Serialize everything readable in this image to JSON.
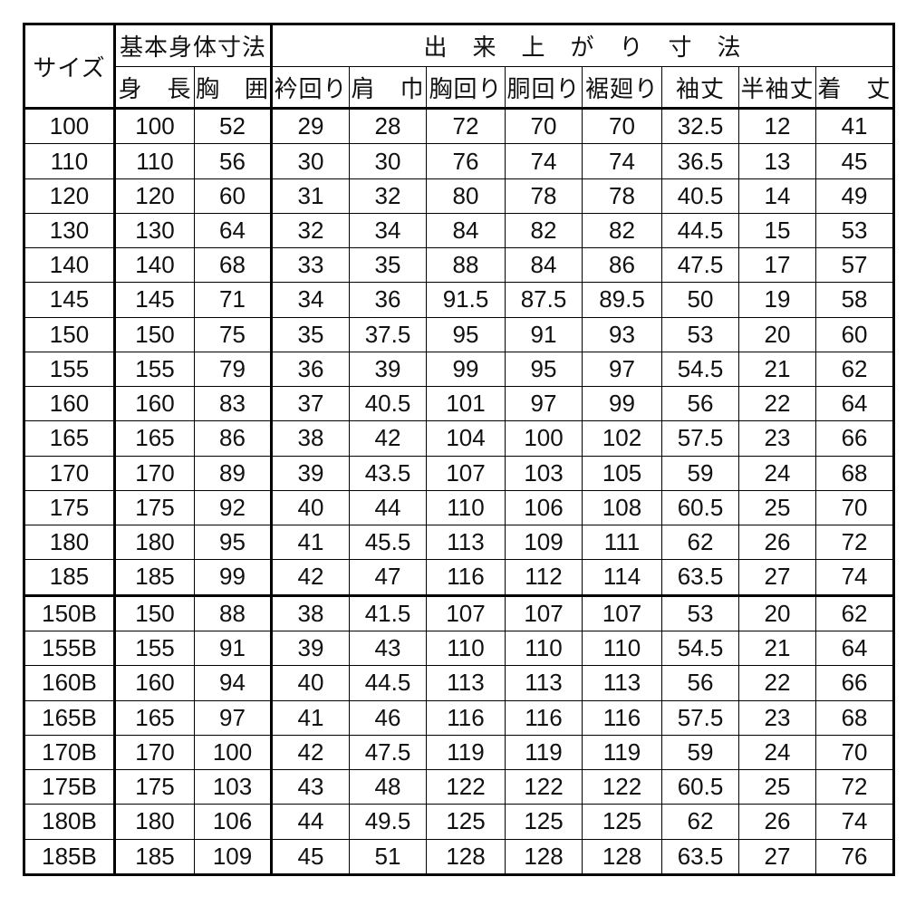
{
  "page": {
    "background_color": "#ffffff",
    "border_color": "#000000",
    "text_color": "#111111"
  },
  "table": {
    "header": {
      "size_label": "サイズ",
      "basic_group_label": "基本身体寸法",
      "finished_group_label": "出　来　上　が　り　寸　法",
      "columns": [
        {
          "name": "height",
          "label": "身　長"
        },
        {
          "name": "chest-girth",
          "label": "胸　囲"
        },
        {
          "name": "collar",
          "label": "衿回り"
        },
        {
          "name": "shoulder-width",
          "label": "肩　巾"
        },
        {
          "name": "chest",
          "label": "胸回り"
        },
        {
          "name": "waist",
          "label": "胴回り"
        },
        {
          "name": "hem",
          "label": "裾廻り"
        },
        {
          "name": "sleeve-length",
          "label": "袖丈"
        },
        {
          "name": "half-sleeve-length",
          "label": "半袖丈"
        },
        {
          "name": "body-length",
          "label": "着　丈"
        }
      ]
    },
    "regular_rows": [
      [
        "100",
        "100",
        "52",
        "29",
        "28",
        "72",
        "70",
        "70",
        "32.5",
        "12",
        "41"
      ],
      [
        "110",
        "110",
        "56",
        "30",
        "30",
        "76",
        "74",
        "74",
        "36.5",
        "13",
        "45"
      ],
      [
        "120",
        "120",
        "60",
        "31",
        "32",
        "80",
        "78",
        "78",
        "40.5",
        "14",
        "49"
      ],
      [
        "130",
        "130",
        "64",
        "32",
        "34",
        "84",
        "82",
        "82",
        "44.5",
        "15",
        "53"
      ],
      [
        "140",
        "140",
        "68",
        "33",
        "35",
        "88",
        "84",
        "86",
        "47.5",
        "17",
        "57"
      ],
      [
        "145",
        "145",
        "71",
        "34",
        "36",
        "91.5",
        "87.5",
        "89.5",
        "50",
        "19",
        "58"
      ],
      [
        "150",
        "150",
        "75",
        "35",
        "37.5",
        "95",
        "91",
        "93",
        "53",
        "20",
        "60"
      ],
      [
        "155",
        "155",
        "79",
        "36",
        "39",
        "99",
        "95",
        "97",
        "54.5",
        "21",
        "62"
      ],
      [
        "160",
        "160",
        "83",
        "37",
        "40.5",
        "101",
        "97",
        "99",
        "56",
        "22",
        "64"
      ],
      [
        "165",
        "165",
        "86",
        "38",
        "42",
        "104",
        "100",
        "102",
        "57.5",
        "23",
        "66"
      ],
      [
        "170",
        "170",
        "89",
        "39",
        "43.5",
        "107",
        "103",
        "105",
        "59",
        "24",
        "68"
      ],
      [
        "175",
        "175",
        "92",
        "40",
        "44",
        "110",
        "106",
        "108",
        "60.5",
        "25",
        "70"
      ],
      [
        "180",
        "180",
        "95",
        "41",
        "45.5",
        "113",
        "109",
        "111",
        "62",
        "26",
        "72"
      ],
      [
        "185",
        "185",
        "99",
        "42",
        "47",
        "116",
        "112",
        "114",
        "63.5",
        "27",
        "74"
      ]
    ],
    "b_rows": [
      [
        "150B",
        "150",
        "88",
        "38",
        "41.5",
        "107",
        "107",
        "107",
        "53",
        "20",
        "62"
      ],
      [
        "155B",
        "155",
        "91",
        "39",
        "43",
        "110",
        "110",
        "110",
        "54.5",
        "21",
        "64"
      ],
      [
        "160B",
        "160",
        "94",
        "40",
        "44.5",
        "113",
        "113",
        "113",
        "56",
        "22",
        "66"
      ],
      [
        "165B",
        "165",
        "97",
        "41",
        "46",
        "116",
        "116",
        "116",
        "57.5",
        "23",
        "68"
      ],
      [
        "170B",
        "170",
        "100",
        "42",
        "47.5",
        "119",
        "119",
        "119",
        "59",
        "24",
        "70"
      ],
      [
        "175B",
        "175",
        "103",
        "43",
        "48",
        "122",
        "122",
        "122",
        "60.5",
        "25",
        "72"
      ],
      [
        "180B",
        "180",
        "106",
        "44",
        "49.5",
        "125",
        "125",
        "125",
        "62",
        "26",
        "74"
      ],
      [
        "185B",
        "185",
        "109",
        "45",
        "51",
        "128",
        "128",
        "128",
        "63.5",
        "27",
        "76"
      ]
    ]
  }
}
